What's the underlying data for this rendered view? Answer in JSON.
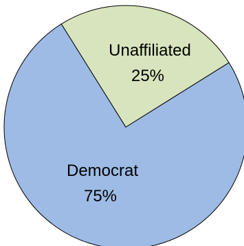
{
  "chart_data": {
    "type": "pie",
    "title": "",
    "slices": [
      {
        "label": "Unaffiliated",
        "value": 25,
        "value_label": "25%",
        "color": "#d7e4bd"
      },
      {
        "label": "Democrat",
        "value": 75,
        "value_label": "75%",
        "color": "#9dbbe5"
      }
    ],
    "stroke_color": "#000000"
  }
}
